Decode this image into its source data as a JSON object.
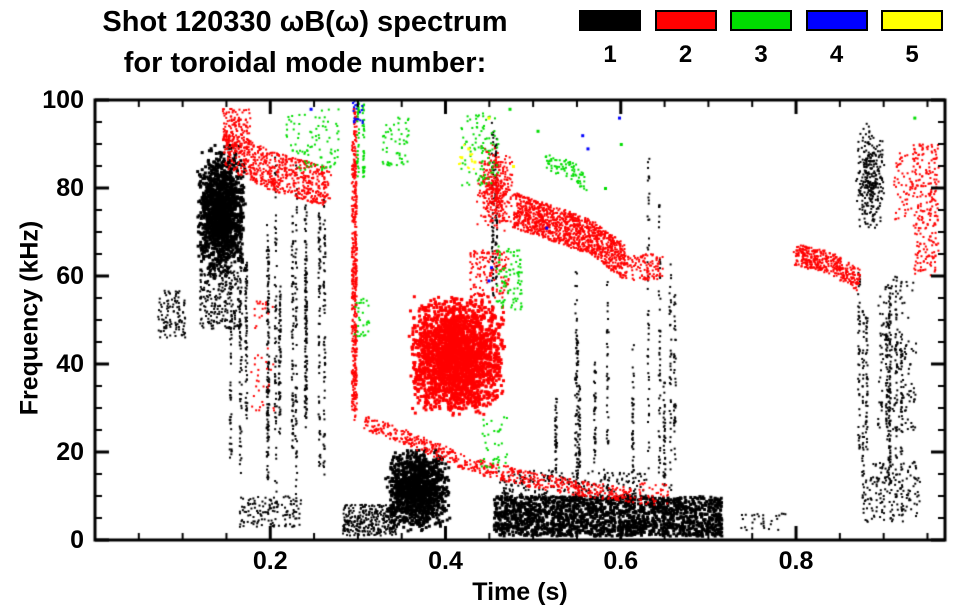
{
  "page": {
    "background": "#ffffff"
  },
  "chart_data": {
    "type": "scatter",
    "title_line1": "Shot 120330 ωB(ω) spectrum",
    "title_line2": "for toroidal mode number:",
    "xlabel": "Time (s)",
    "ylabel": "Frequency (kHz)",
    "xlim": [
      0,
      0.97
    ],
    "ylim": [
      0,
      100
    ],
    "x_major_ticks": [
      0.2,
      0.4,
      0.6,
      0.8
    ],
    "x_tick_labels": [
      "0.2",
      "0.4",
      "0.6",
      "0.8"
    ],
    "x_minor_step": 0.05,
    "y_major_ticks": [
      0,
      20,
      40,
      60,
      80,
      100
    ],
    "y_tick_labels": [
      "0",
      "20",
      "40",
      "60",
      "80",
      "100"
    ],
    "y_minor_step": 5,
    "grid": false,
    "frame_color": "#000000",
    "legend_position": "top-right",
    "legend": [
      {
        "label": "1",
        "color": "#000000"
      },
      {
        "label": "2",
        "color": "#ff0000"
      },
      {
        "label": "3",
        "color": "#00dd00"
      },
      {
        "label": "4",
        "color": "#0000ff"
      },
      {
        "label": "5",
        "color": "#ffff00"
      }
    ],
    "series": [
      {
        "name": "toroidal mode n=1",
        "color": "#000000",
        "clusters": [
          {
            "shape": "blob",
            "t": [
              0.115,
              0.172
            ],
            "f": [
              60,
              90
            ],
            "count": 1500,
            "size": 3,
            "concentrate": true
          },
          {
            "shape": "blob",
            "t": [
              0.12,
              0.168
            ],
            "f": [
              48,
              62
            ],
            "count": 260,
            "size": 2
          },
          {
            "shape": "vstreaks",
            "t": [
              0.148,
              0.262
            ],
            "n": 13,
            "fLow": [
              3,
              32
            ],
            "fHigh": [
              58,
              92
            ],
            "count": 70
          },
          {
            "shape": "blob",
            "t": [
              0.072,
              0.103
            ],
            "f": [
              46,
              57
            ],
            "count": 110,
            "size": 2
          },
          {
            "shape": "blob",
            "t": [
              0.165,
              0.235
            ],
            "f": [
              3,
              10
            ],
            "count": 140,
            "size": 2
          },
          {
            "shape": "blob",
            "t": [
              0.283,
              0.345
            ],
            "f": [
              1,
              8
            ],
            "count": 320,
            "size": 2
          },
          {
            "shape": "blob",
            "t": [
              0.33,
              0.405
            ],
            "f": [
              2,
              21
            ],
            "count": 1300,
            "size": 3,
            "concentrate": true
          },
          {
            "shape": "blob",
            "t": [
              0.455,
              0.715
            ],
            "f": [
              1,
              10
            ],
            "count": 1700,
            "size": 3
          },
          {
            "shape": "blob",
            "t": [
              0.46,
              0.63
            ],
            "f": [
              9,
              16
            ],
            "count": 260,
            "size": 2
          },
          {
            "shape": "vstreaks",
            "t": [
              0.52,
              0.67
            ],
            "n": 10,
            "fLow": [
              10,
              18
            ],
            "fHigh": [
              30,
              68
            ],
            "count": 42
          },
          {
            "shape": "vstreaks",
            "t": [
              0.452,
              0.463
            ],
            "n": 2,
            "fLow": [
              52,
              60
            ],
            "fHigh": [
              92,
              100
            ],
            "count": 55
          },
          {
            "shape": "vstreaks",
            "t": [
              0.628,
              0.648
            ],
            "n": 2,
            "fLow": [
              12,
              20
            ],
            "fHigh": [
              75,
              95
            ],
            "count": 50
          },
          {
            "shape": "vstreaks",
            "t": [
              0.858,
              0.935
            ],
            "n": 8,
            "fLow": [
              4,
              22
            ],
            "fHigh": [
              35,
              62
            ],
            "count": 48
          },
          {
            "shape": "blob",
            "t": [
              0.868,
              0.902
            ],
            "f": [
              70,
              95
            ],
            "count": 300,
            "size": 2,
            "concentrate": true
          },
          {
            "shape": "blob",
            "t": [
              0.893,
              0.937
            ],
            "f": [
              25,
              60
            ],
            "count": 160,
            "size": 2
          },
          {
            "shape": "blob",
            "t": [
              0.878,
              0.942
            ],
            "f": [
              4,
              18
            ],
            "count": 170,
            "size": 2
          },
          {
            "shape": "blob",
            "t": [
              0.737,
              0.79
            ],
            "f": [
              2,
              6
            ],
            "count": 30,
            "size": 2
          }
        ]
      },
      {
        "name": "toroidal mode n=2",
        "color": "#ff0000",
        "clusters": [
          {
            "shape": "band",
            "path": [
              [
                0.148,
                89
              ],
              [
                0.2,
                84
              ],
              [
                0.268,
                80
              ]
            ],
            "width": 9,
            "count": 650
          },
          {
            "shape": "blob",
            "t": [
              0.146,
              0.178
            ],
            "f": [
              88,
              98
            ],
            "count": 150,
            "size": 2
          },
          {
            "shape": "blob",
            "t": [
              0.178,
              0.205
            ],
            "f": [
              28,
              56
            ],
            "count": 45,
            "size": 2
          },
          {
            "shape": "vstreaks",
            "t": [
              0.292,
              0.306
            ],
            "n": 3,
            "fLow": [
              26,
              33
            ],
            "fHigh": [
              90,
              100
            ],
            "count": 160
          },
          {
            "shape": "band",
            "path": [
              [
                0.306,
                27
              ],
              [
                0.37,
                22
              ],
              [
                0.43,
                17
              ],
              [
                0.49,
                14
              ],
              [
                0.545,
                12
              ],
              [
                0.615,
                10
              ]
            ],
            "width": 3.5,
            "count": 600
          },
          {
            "shape": "blob",
            "t": [
              0.357,
              0.468
            ],
            "f": [
              28,
              56
            ],
            "count": 2600,
            "size": 3,
            "concentrate": true
          },
          {
            "shape": "blob",
            "t": [
              0.428,
              0.472
            ],
            "f": [
              55,
              66
            ],
            "count": 140,
            "size": 2
          },
          {
            "shape": "blob",
            "t": [
              0.435,
              0.478
            ],
            "f": [
              70,
              90
            ],
            "count": 380,
            "size": 2,
            "concentrate": true
          },
          {
            "shape": "band",
            "path": [
              [
                0.478,
                75
              ],
              [
                0.52,
                72
              ],
              [
                0.565,
                69
              ],
              [
                0.605,
                63
              ]
            ],
            "width": 8,
            "count": 1200
          },
          {
            "shape": "blob",
            "t": [
              0.605,
              0.648
            ],
            "f": [
              59,
              65
            ],
            "count": 110,
            "size": 2
          },
          {
            "shape": "band",
            "path": [
              [
                0.798,
                65
              ],
              [
                0.838,
                63
              ],
              [
                0.872,
                59
              ]
            ],
            "width": 5,
            "count": 380
          },
          {
            "shape": "blob",
            "t": [
              0.912,
              0.934
            ],
            "f": [
              72,
              88
            ],
            "count": 60,
            "size": 2
          },
          {
            "shape": "blob",
            "t": [
              0.934,
              0.963
            ],
            "f": [
              60,
              90
            ],
            "count": 240,
            "size": 2
          },
          {
            "shape": "blob",
            "t": [
              0.62,
              0.655
            ],
            "f": [
              8,
              13
            ],
            "count": 40,
            "size": 2
          }
        ]
      },
      {
        "name": "toroidal mode n=3",
        "color": "#00dd00",
        "clusters": [
          {
            "shape": "blob",
            "t": [
              0.218,
              0.278
            ],
            "f": [
              84,
              98
            ],
            "count": 90,
            "size": 2
          },
          {
            "shape": "vstreaks",
            "t": [
              0.296,
              0.308
            ],
            "n": 2,
            "fLow": [
              80,
              85
            ],
            "fHigh": [
              96,
              100
            ],
            "count": 40
          },
          {
            "shape": "blob",
            "t": [
              0.328,
              0.358
            ],
            "f": [
              85,
              96
            ],
            "count": 55,
            "size": 2
          },
          {
            "shape": "blob",
            "t": [
              0.418,
              0.462
            ],
            "f": [
              80,
              97
            ],
            "count": 100,
            "size": 2
          },
          {
            "shape": "blob",
            "t": [
              0.458,
              0.487
            ],
            "f": [
              52,
              67
            ],
            "count": 90,
            "size": 2
          },
          {
            "shape": "band",
            "path": [
              [
                0.512,
                86
              ],
              [
                0.545,
                84
              ],
              [
                0.562,
                81
              ]
            ],
            "width": 4,
            "count": 80
          },
          {
            "shape": "blob",
            "t": [
              0.296,
              0.315
            ],
            "f": [
              46,
              56
            ],
            "count": 30,
            "size": 2
          },
          {
            "shape": "blob",
            "t": [
              0.44,
              0.472
            ],
            "f": [
              16,
              28
            ],
            "count": 38,
            "size": 2
          },
          {
            "shape": "dots",
            "pts": [
              [
                0.6,
                90
              ],
              [
                0.935,
                96
              ],
              [
                0.473,
                98
              ],
              [
                0.505,
                93
              ],
              [
                0.582,
                80
              ]
            ],
            "size": 3
          }
        ]
      },
      {
        "name": "toroidal mode n=4",
        "color": "#0000ff",
        "clusters": [
          {
            "shape": "blob",
            "t": [
              0.293,
              0.306
            ],
            "f": [
              94,
              100
            ],
            "count": 22,
            "size": 2
          },
          {
            "shape": "dots",
            "pts": [
              [
                0.556,
                92
              ],
              [
                0.562,
                89
              ],
              [
                0.449,
                59
              ],
              [
                0.452,
                62
              ],
              [
                0.598,
                96
              ],
              [
                0.246,
                98
              ],
              [
                0.515,
                71
              ]
            ],
            "size": 3
          }
        ]
      },
      {
        "name": "toroidal mode n=5",
        "color": "#ffff00",
        "clusters": [
          {
            "shape": "dots",
            "pts": [
              [
                0.418,
                87
              ],
              [
                0.426,
                89
              ],
              [
                0.433,
                86
              ],
              [
                0.449,
                96
              ],
              [
                0.477,
                85
              ]
            ],
            "size": 3
          },
          {
            "shape": "blob",
            "t": [
              0.415,
              0.437
            ],
            "f": [
              84,
              90
            ],
            "count": 12,
            "size": 2
          }
        ]
      }
    ]
  }
}
